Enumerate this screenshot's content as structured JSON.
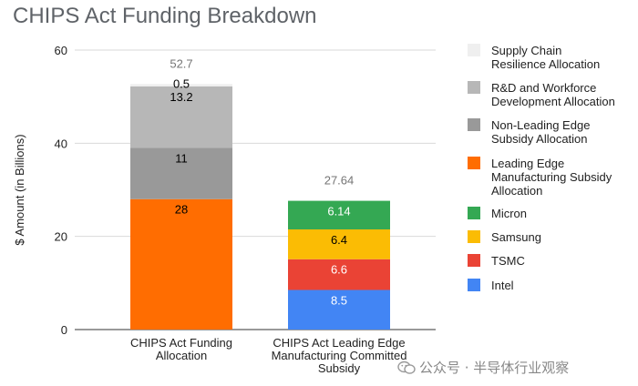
{
  "chart_data": {
    "type": "bar",
    "stacked": true,
    "title": "CHIPS Act Funding Breakdown",
    "ylabel": "$ Amount (in Billions)",
    "xlabel": "",
    "ylim": [
      0,
      60
    ],
    "yticks": [
      0,
      20,
      40,
      60
    ],
    "grid": true,
    "legend_position": "right",
    "categories": [
      "CHIPS Act Funding Allocation",
      "CHIPS Act Leading Edge Manufacturing Committed Subsidy"
    ],
    "category_label_lines": [
      [
        "CHIPS Act Funding",
        "Allocation"
      ],
      [
        "CHIPS Act Leading Edge",
        "Manufacturing Committed",
        "Subsidy"
      ]
    ],
    "totals": [
      "52.7",
      "27.64"
    ],
    "series": [
      {
        "name": "Intel",
        "values": [
          null,
          8.5
        ],
        "labels": [
          "",
          "8.5"
        ],
        "color": "#4285f4",
        "label_color": "#ffffff"
      },
      {
        "name": "TSMC",
        "values": [
          null,
          6.6
        ],
        "labels": [
          "",
          "6.6"
        ],
        "color": "#ea4335",
        "label_color": "#ffffff"
      },
      {
        "name": "Samsung",
        "values": [
          null,
          6.4
        ],
        "labels": [
          "",
          "6.4"
        ],
        "color": "#fbbc04",
        "label_color": "#000000"
      },
      {
        "name": "Micron",
        "values": [
          null,
          6.14
        ],
        "labels": [
          "",
          "6.14"
        ],
        "color": "#34a853",
        "label_color": "#ffffff"
      },
      {
        "name": "Leading Edge Manufacturing Subsidy Allocation",
        "values": [
          28,
          null
        ],
        "labels": [
          "28",
          ""
        ],
        "color": "#ff6d01",
        "label_color": "#000000"
      },
      {
        "name": "Non-Leading Edge Subsidy Allocation",
        "values": [
          11,
          null
        ],
        "labels": [
          "11",
          ""
        ],
        "color": "#999999",
        "label_color": "#000000"
      },
      {
        "name": "R&D and Workforce Development Allocation",
        "values": [
          13.2,
          null
        ],
        "labels": [
          "13.2",
          ""
        ],
        "color": "#b7b7b7",
        "label_color": "#000000"
      },
      {
        "name": "Supply Chain Resilience Allocation",
        "values": [
          0.5,
          null
        ],
        "labels": [
          "0.5",
          ""
        ],
        "color": "#efefef",
        "label_color": "#000000"
      }
    ],
    "legend": [
      {
        "lines": [
          "Supply Chain",
          "Resilience Allocation"
        ],
        "color": "#efefef"
      },
      {
        "lines": [
          "R&D and Workforce",
          "Development Allocation"
        ],
        "color": "#b7b7b7"
      },
      {
        "lines": [
          "Non-Leading Edge",
          "Subsidy Allocation"
        ],
        "color": "#999999"
      },
      {
        "lines": [
          "Leading Edge",
          "Manufacturing Subsidy",
          "Allocation"
        ],
        "color": "#ff6d01"
      },
      {
        "lines": [
          "Micron"
        ],
        "color": "#34a853"
      },
      {
        "lines": [
          "Samsung"
        ],
        "color": "#fbbc04"
      },
      {
        "lines": [
          "TSMC"
        ],
        "color": "#ea4335"
      },
      {
        "lines": [
          "Intel"
        ],
        "color": "#4285f4"
      }
    ]
  },
  "watermark": {
    "text": "公众号 · 半导体行业观察",
    "icon": "wechat-icon"
  }
}
